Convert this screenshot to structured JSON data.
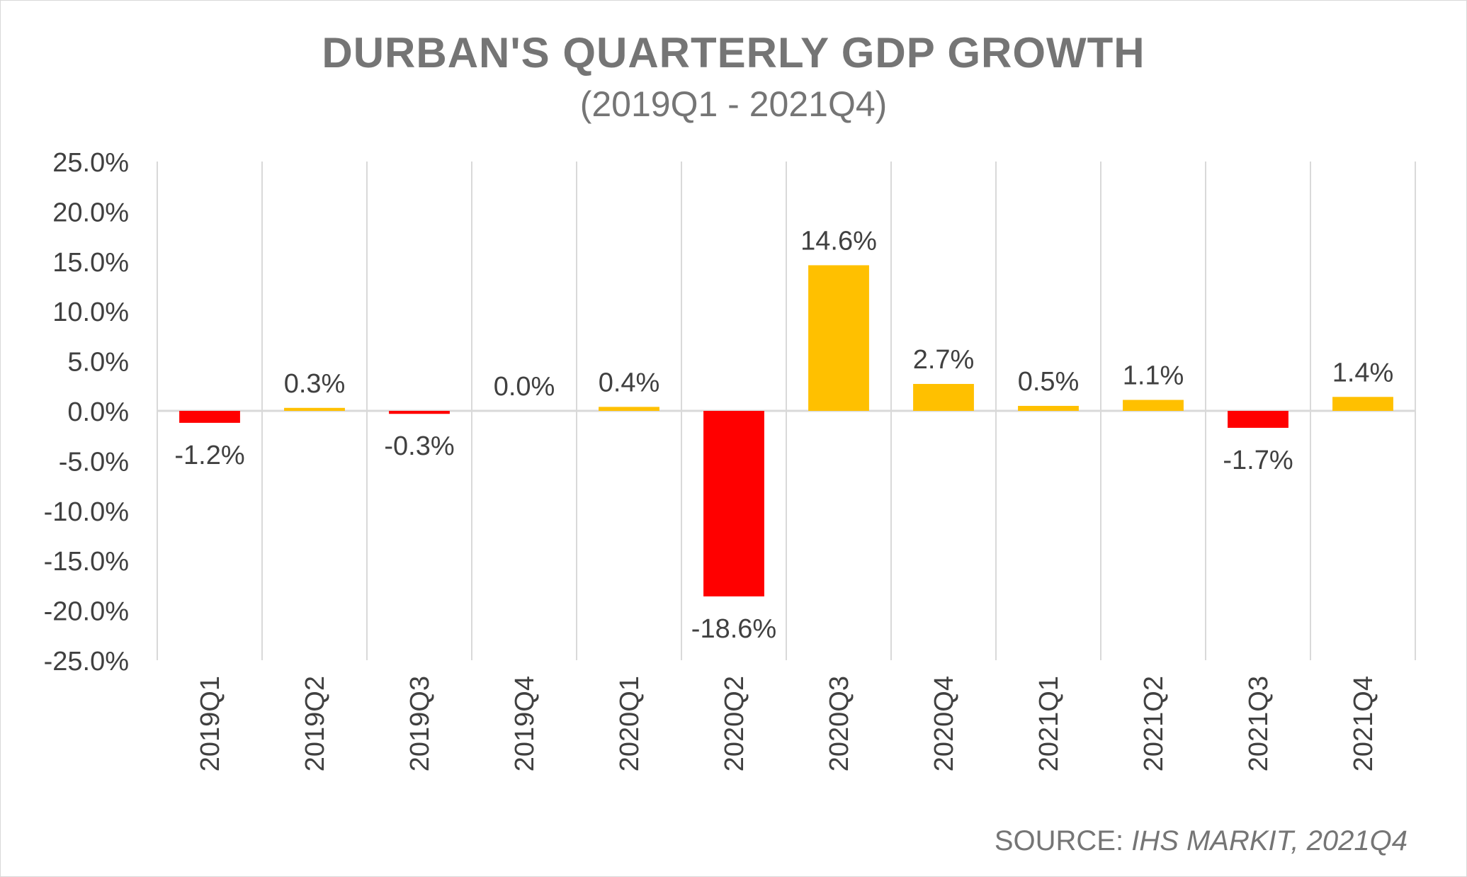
{
  "chart_data": {
    "type": "bar",
    "title": "DURBAN'S QUARTERLY GDP GROWTH",
    "subtitle": "(2019Q1 - 2021Q4)",
    "categories": [
      "2019Q1",
      "2019Q2",
      "2019Q3",
      "2019Q4",
      "2020Q1",
      "2020Q2",
      "2020Q3",
      "2020Q4",
      "2021Q1",
      "2021Q2",
      "2021Q3",
      "2021Q4"
    ],
    "values": [
      -1.2,
      0.3,
      -0.3,
      0.0,
      0.4,
      -18.6,
      14.6,
      2.7,
      0.5,
      1.1,
      -1.7,
      1.4
    ],
    "data_labels": [
      "-1.2%",
      "0.3%",
      "-0.3%",
      "0.0%",
      "0.4%",
      "-18.6%",
      "14.6%",
      "2.7%",
      "0.5%",
      "1.1%",
      "-1.7%",
      "1.4%"
    ],
    "ylim": [
      -25,
      25
    ],
    "yticks": [
      25,
      20,
      15,
      10,
      5,
      0,
      -5,
      -10,
      -15,
      -20,
      -25
    ],
    "ytick_labels": [
      "25.0%",
      "20.0%",
      "15.0%",
      "10.0%",
      "5.0%",
      "0.0%",
      "-5.0%",
      "-10.0%",
      "-15.0%",
      "-20.0%",
      "-25.0%"
    ],
    "xlabel": "",
    "ylabel": "",
    "grid": "vertical",
    "colors": {
      "positive": "#FFC000",
      "negative": "#FF0000",
      "text": "#404040",
      "title": "#757575",
      "grid": "#d9d9d9",
      "axis": "#d9d9d9"
    }
  },
  "source": {
    "prefix": "SOURCE: ",
    "name": "IHS MARKIT, 2021Q4"
  }
}
